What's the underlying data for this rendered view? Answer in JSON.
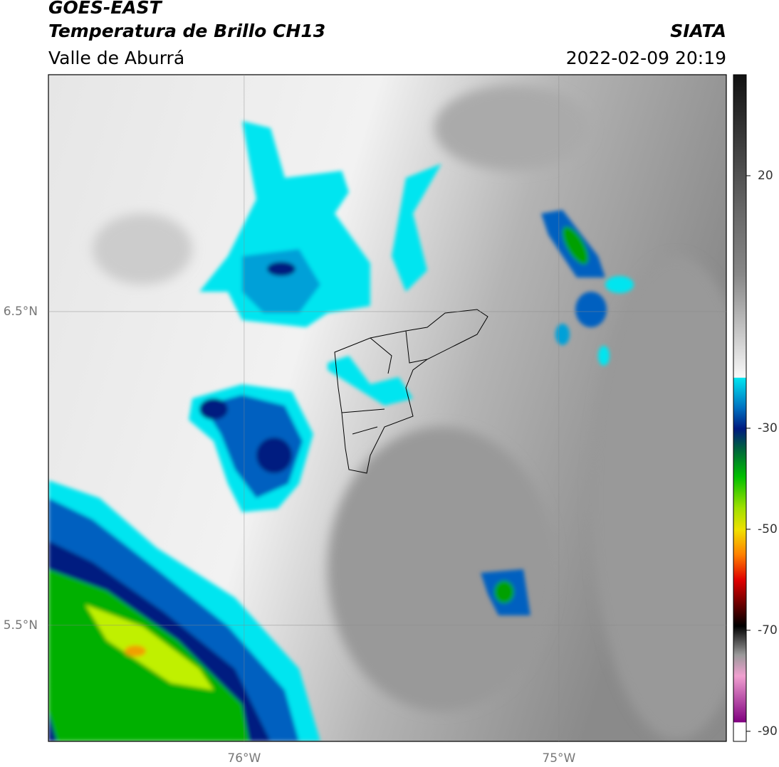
{
  "header": {
    "satellite": "GOES-EAST",
    "product": "Temperatura de Brillo CH13",
    "region": "Valle de Aburrá",
    "source": "SIATA",
    "datetime": "2022-02-09 20:19"
  },
  "map": {
    "xlim": [
      -76.622,
      -74.468
    ],
    "ylim": [
      5.13,
      7.255
    ],
    "xticks": [
      {
        "value": -76,
        "label": "76°W"
      },
      {
        "value": -75,
        "label": "75°W"
      }
    ],
    "yticks": [
      {
        "value": 5.5,
        "label": "5.5°N"
      },
      {
        "value": 6.5,
        "label": "6.5°N"
      }
    ],
    "grid": true
  },
  "colorbar": {
    "lim": [
      -92,
      40
    ],
    "ticks": [
      20,
      -30,
      -50,
      -70,
      -90
    ]
  }
}
